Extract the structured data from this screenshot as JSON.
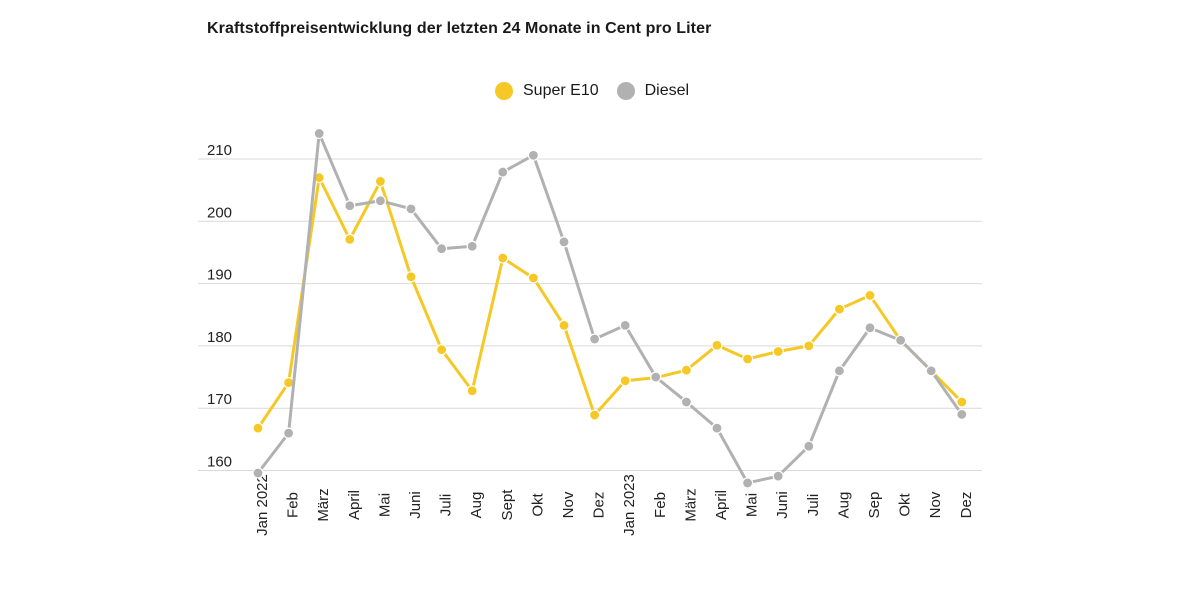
{
  "chart_data": {
    "type": "line",
    "title": "Kraftstoffpreisentwicklung der letzten 24 Monate in Cent pro Liter",
    "xlabel": "",
    "ylabel": "",
    "ylim": [
      155,
      215
    ],
    "yticks": [
      160,
      170,
      180,
      190,
      200,
      210
    ],
    "grid": true,
    "legend_position": "top-center",
    "categories": [
      "Jan 2022",
      "Feb",
      "März",
      "April",
      "Mai",
      "Juni",
      "Juli",
      "Aug",
      "Sept",
      "Okt",
      "Nov",
      "Dez",
      "Jan 2023",
      "Feb",
      "März",
      "April",
      "Mai",
      "Juni",
      "Juli",
      "Aug",
      "Sep",
      "Okt",
      "Nov",
      "Dez"
    ],
    "series": [
      {
        "name": "Super E10",
        "color": "#f5c825",
        "values": [
          166.8,
          174.1,
          207.0,
          197.1,
          206.4,
          191.1,
          179.4,
          172.8,
          194.1,
          190.9,
          183.3,
          168.9,
          174.4,
          174.9,
          176.1,
          180.1,
          177.9,
          179.1,
          180.0,
          185.9,
          188.1,
          180.9,
          176.0,
          171.0
        ]
      },
      {
        "name": "Diesel",
        "color": "#b1b1b1",
        "values": [
          159.6,
          166.0,
          214.1,
          202.5,
          203.3,
          202.0,
          195.6,
          196.0,
          207.9,
          210.6,
          196.7,
          181.1,
          183.3,
          175.0,
          171.0,
          166.8,
          158.0,
          159.1,
          163.9,
          176.0,
          182.9,
          180.9,
          176.0,
          169.0
        ]
      }
    ]
  }
}
